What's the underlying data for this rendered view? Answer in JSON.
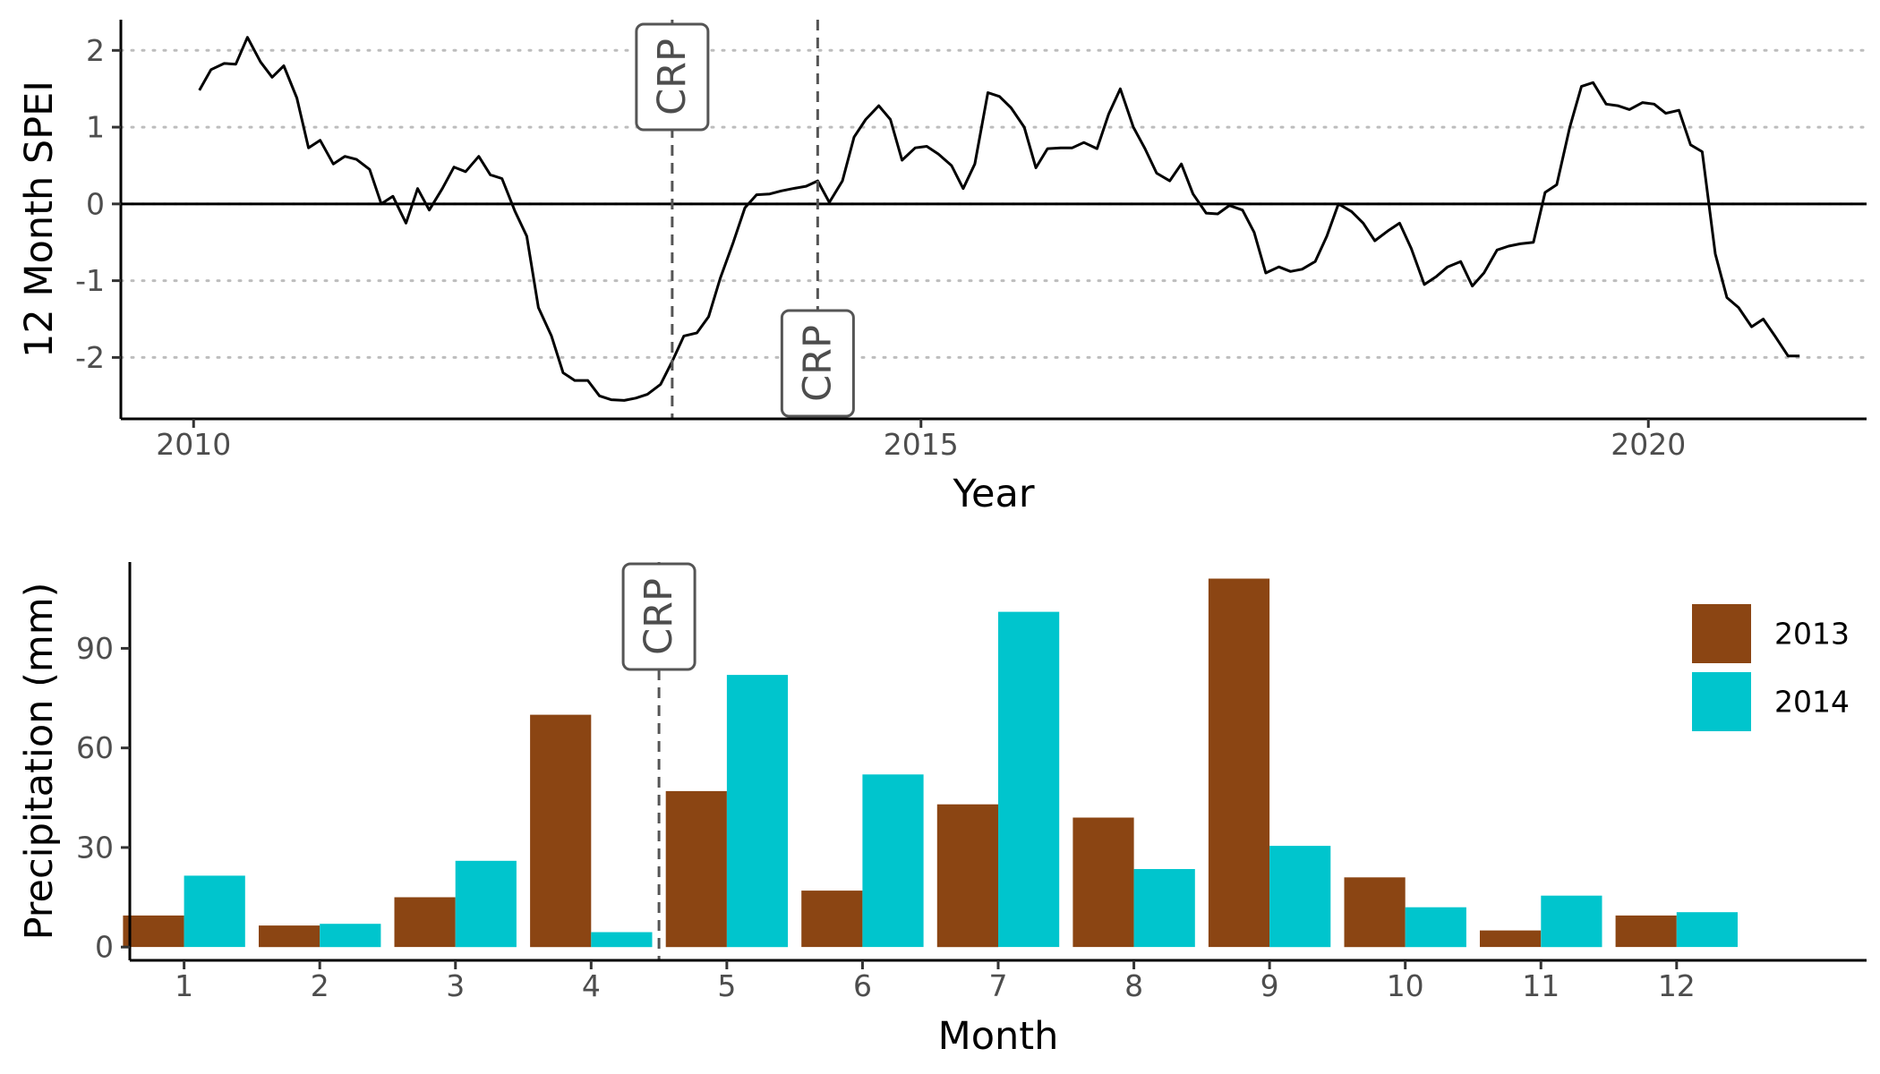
{
  "chart_data": [
    {
      "type": "line",
      "ylabel": "12 Month SPEI",
      "xlabel": "Year",
      "xlim": [
        2009.5,
        2021.5
      ],
      "ylim": [
        -2.8,
        2.4
      ],
      "x_ticks": [
        2010,
        2015,
        2020
      ],
      "x_tick_labels": [
        "2010",
        "2015",
        "2020"
      ],
      "y_ticks": [
        -2,
        -1,
        0,
        1,
        2
      ],
      "y_tick_labels": [
        "-2",
        "-1",
        "0",
        "1",
        "2"
      ],
      "grid": "dotted horizontal at y ticks",
      "reference_line": 0,
      "vlines": [
        {
          "x": 2013.29,
          "label": "CRP",
          "label_position": "top"
        },
        {
          "x": 2014.29,
          "label": "CRP",
          "label_position": "bottom"
        }
      ],
      "series": [
        {
          "values": [
            [
              2010.04,
              1.48
            ],
            [
              2010.12,
              1.75
            ],
            [
              2010.21,
              1.83
            ],
            [
              2010.29,
              1.82
            ],
            [
              2010.37,
              2.17
            ],
            [
              2010.46,
              1.85
            ],
            [
              2010.54,
              1.65
            ],
            [
              2010.62,
              1.8
            ],
            [
              2010.71,
              1.38
            ],
            [
              2010.79,
              0.73
            ],
            [
              2010.87,
              0.83
            ],
            [
              2010.96,
              0.52
            ],
            [
              2011.04,
              0.62
            ],
            [
              2011.12,
              0.58
            ],
            [
              2011.21,
              0.45
            ],
            [
              2011.29,
              0.0
            ],
            [
              2011.37,
              0.1
            ],
            [
              2011.46,
              -0.25
            ],
            [
              2011.54,
              0.2
            ],
            [
              2011.62,
              -0.08
            ],
            [
              2011.71,
              0.2
            ],
            [
              2011.79,
              0.48
            ],
            [
              2011.87,
              0.42
            ],
            [
              2011.96,
              0.62
            ],
            [
              2012.04,
              0.38
            ],
            [
              2012.12,
              0.33
            ],
            [
              2012.21,
              -0.1
            ],
            [
              2012.29,
              -0.42
            ],
            [
              2012.37,
              -1.35
            ],
            [
              2012.46,
              -1.72
            ],
            [
              2012.54,
              -2.2
            ],
            [
              2012.62,
              -2.3
            ],
            [
              2012.71,
              -2.3
            ],
            [
              2012.79,
              -2.5
            ],
            [
              2012.87,
              -2.55
            ],
            [
              2012.96,
              -2.56
            ],
            [
              2013.04,
              -2.53
            ],
            [
              2013.12,
              -2.48
            ],
            [
              2013.21,
              -2.35
            ],
            [
              2013.29,
              -2.05
            ],
            [
              2013.37,
              -1.72
            ],
            [
              2013.46,
              -1.68
            ],
            [
              2013.54,
              -1.47
            ],
            [
              2013.62,
              -0.97
            ],
            [
              2013.71,
              -0.5
            ],
            [
              2013.79,
              -0.05
            ],
            [
              2013.87,
              0.12
            ],
            [
              2013.96,
              0.13
            ],
            [
              2014.04,
              0.17
            ],
            [
              2014.12,
              0.2
            ],
            [
              2014.21,
              0.23
            ],
            [
              2014.29,
              0.3
            ],
            [
              2014.37,
              0.02
            ],
            [
              2014.46,
              0.3
            ],
            [
              2014.54,
              0.87
            ],
            [
              2014.62,
              1.1
            ],
            [
              2014.71,
              1.28
            ],
            [
              2014.79,
              1.1
            ],
            [
              2014.87,
              0.57
            ],
            [
              2014.96,
              0.73
            ],
            [
              2015.04,
              0.75
            ],
            [
              2015.12,
              0.65
            ],
            [
              2015.21,
              0.5
            ],
            [
              2015.29,
              0.2
            ],
            [
              2015.37,
              0.52
            ],
            [
              2015.46,
              1.45
            ],
            [
              2015.54,
              1.4
            ],
            [
              2015.62,
              1.25
            ],
            [
              2015.71,
              1.0
            ],
            [
              2015.79,
              0.47
            ],
            [
              2015.87,
              0.72
            ],
            [
              2015.96,
              0.73
            ],
            [
              2016.04,
              0.73
            ],
            [
              2016.12,
              0.8
            ],
            [
              2016.21,
              0.72
            ],
            [
              2016.29,
              1.17
            ],
            [
              2016.37,
              1.5
            ],
            [
              2016.46,
              1.0
            ],
            [
              2016.54,
              0.72
            ],
            [
              2016.62,
              0.4
            ],
            [
              2016.71,
              0.3
            ],
            [
              2016.79,
              0.52
            ],
            [
              2016.87,
              0.13
            ],
            [
              2016.96,
              -0.12
            ],
            [
              2017.04,
              -0.13
            ],
            [
              2017.12,
              -0.02
            ],
            [
              2017.21,
              -0.08
            ],
            [
              2017.29,
              -0.37
            ],
            [
              2017.37,
              -0.9
            ],
            [
              2017.46,
              -0.82
            ],
            [
              2017.54,
              -0.88
            ],
            [
              2017.62,
              -0.85
            ],
            [
              2017.71,
              -0.75
            ],
            [
              2017.79,
              -0.42
            ],
            [
              2017.87,
              0.0
            ],
            [
              2017.96,
              -0.1
            ],
            [
              2018.04,
              -0.25
            ],
            [
              2018.12,
              -0.48
            ],
            [
              2018.21,
              -0.35
            ],
            [
              2018.29,
              -0.25
            ],
            [
              2018.37,
              -0.58
            ],
            [
              2018.46,
              -1.05
            ],
            [
              2018.54,
              -0.95
            ],
            [
              2018.62,
              -0.82
            ],
            [
              2018.71,
              -0.75
            ],
            [
              2018.79,
              -1.07
            ],
            [
              2018.87,
              -0.9
            ],
            [
              2018.96,
              -0.6
            ],
            [
              2019.04,
              -0.55
            ],
            [
              2019.12,
              -0.52
            ],
            [
              2019.21,
              -0.5
            ],
            [
              2019.29,
              0.15
            ],
            [
              2019.37,
              0.25
            ],
            [
              2019.46,
              1.0
            ],
            [
              2019.54,
              1.53
            ],
            [
              2019.62,
              1.58
            ],
            [
              2019.71,
              1.3
            ],
            [
              2019.79,
              1.28
            ],
            [
              2019.87,
              1.23
            ],
            [
              2019.96,
              1.32
            ],
            [
              2020.04,
              1.3
            ],
            [
              2020.12,
              1.18
            ],
            [
              2020.21,
              1.22
            ],
            [
              2020.29,
              0.77
            ],
            [
              2020.37,
              0.68
            ],
            [
              2020.46,
              -0.65
            ],
            [
              2020.54,
              -1.22
            ],
            [
              2020.62,
              -1.35
            ],
            [
              2020.71,
              -1.6
            ],
            [
              2020.79,
              -1.5
            ],
            [
              2020.87,
              -1.72
            ],
            [
              2020.96,
              -1.98
            ],
            [
              2021.04,
              -1.98
            ]
          ]
        }
      ]
    },
    {
      "type": "bar",
      "ylabel": "Precipitation (mm)",
      "xlabel": "Month",
      "categories": [
        "1",
        "2",
        "3",
        "4",
        "5",
        "6",
        "7",
        "8",
        "9",
        "10",
        "11",
        "12"
      ],
      "ylim": [
        -4,
        116
      ],
      "y_ticks": [
        0,
        30,
        60,
        90
      ],
      "y_tick_labels": [
        "0",
        "30",
        "60",
        "90"
      ],
      "grid": "off",
      "legend_position": "right",
      "vlines": [
        {
          "x_between": [
            "4",
            "5"
          ],
          "label": "CRP",
          "label_position": "top"
        }
      ],
      "series": [
        {
          "name": "2013",
          "color": "#8B4513",
          "values": [
            9.5,
            6.5,
            15,
            70,
            47,
            17,
            43,
            39,
            111,
            21,
            5,
            9.5
          ]
        },
        {
          "name": "2014",
          "color": "#00C5CD",
          "values": [
            21.5,
            7,
            26,
            4.5,
            82,
            52,
            101,
            23.5,
            30.5,
            12,
            15.5,
            10.5
          ]
        }
      ]
    }
  ]
}
